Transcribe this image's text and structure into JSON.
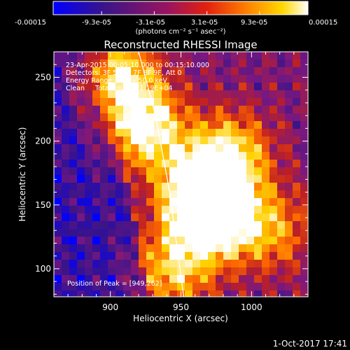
{
  "colorbar": {
    "tick_labels": [
      "-0.00015",
      "-9.3e-05",
      "-3.1e-05",
      "3.1e-05",
      "9.3e-05",
      "0.00015"
    ],
    "tick_values": [
      -0.00015,
      -9.3e-05,
      -3.1e-05,
      3.1e-05,
      9.3e-05,
      0.00015
    ],
    "range": [
      -0.00015,
      0.00015
    ],
    "unit_label": "(photons cm⁻² s⁻¹ asec⁻²)"
  },
  "image_info": {
    "time": "23-Apr-2015 00:05:10.000 to 00:15:10.000",
    "detectors": "Detectors: 3F 5F 6F 7F 8F 9F, Att 0",
    "energy": "Energy Range: 25.0 - 50.0 keV",
    "clean": "Clean     Total counts: 1.19E+04",
    "peak": "Position of Peak = [949,262]"
  },
  "footer": {
    "date": "1-Oct-2017 17:41"
  },
  "chart_data": {
    "type": "heatmap",
    "title": "Reconstructed RHESSI Image",
    "xlabel": "Heliocentric X (arcsec)",
    "ylabel": "Heliocentric Y (arcsec)",
    "xlim": [
      860,
      1040
    ],
    "ylim": [
      78,
      270
    ],
    "xticks": [
      900,
      950,
      1000
    ],
    "yticks": [
      100,
      150,
      200,
      250
    ],
    "x_tick_labels": [
      "900",
      "950",
      "1000"
    ],
    "y_tick_labels": [
      "100",
      "150",
      "200",
      "250"
    ],
    "limb_curve": {
      "x": [
        920,
        932,
        942,
        948,
        952
      ],
      "y": [
        270,
        220,
        160,
        110,
        78
      ]
    },
    "bright_regions": [
      {
        "x": 965,
        "y": 160,
        "level": 1.0
      },
      {
        "x": 975,
        "y": 140,
        "level": 0.85
      },
      {
        "x": 925,
        "y": 210,
        "level": 0.8
      },
      {
        "x": 905,
        "y": 250,
        "level": 0.7
      },
      {
        "x": 985,
        "y": 190,
        "level": 0.65
      },
      {
        "x": 945,
        "y": 100,
        "level": 0.6
      },
      {
        "x": 1015,
        "y": 130,
        "level": 0.45
      }
    ],
    "colors": [
      "#0000ff",
      "#3a1488",
      "#7a1880",
      "#c02020",
      "#ff6a00",
      "#ffd200",
      "#ffffff"
    ]
  }
}
